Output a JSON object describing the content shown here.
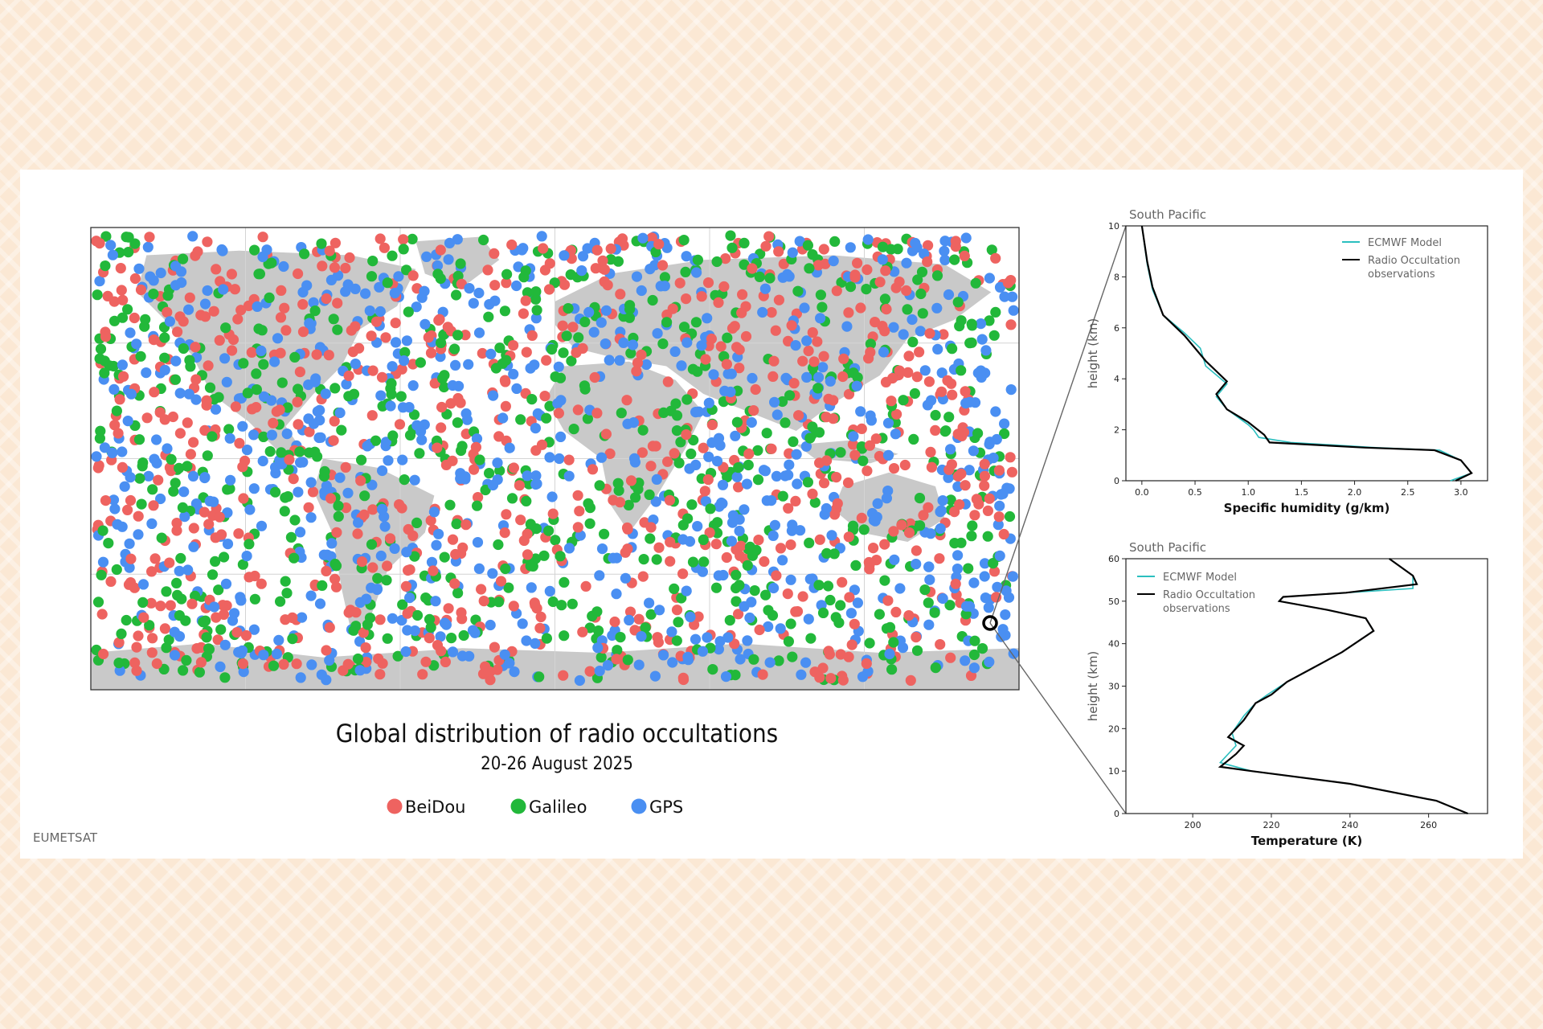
{
  "chart_data": [
    {
      "type": "scatter",
      "title": "Global distribution of radio occultations",
      "subtitle": "20-26 August 2025",
      "legend_position": "bottom-center",
      "series": [
        {
          "name": "BeiDou",
          "color": "#ee6360"
        },
        {
          "name": "Galileo",
          "color": "#22b83a"
        },
        {
          "name": "GPS",
          "color": "#4a8ff2"
        }
      ],
      "highlight_location": "South Pacific",
      "x_range": [
        -180,
        180
      ],
      "y_range": [
        -90,
        90
      ]
    },
    {
      "type": "line",
      "title": "South Pacific",
      "xlabel": "Specific humidity (g/km)",
      "ylabel": "height (km)",
      "xlim": [
        -0.15,
        3.25
      ],
      "ylim": [
        0,
        10
      ],
      "xticks": [
        "0.0",
        "0.5",
        "1.0",
        "1.5",
        "2.0",
        "2.5",
        "3.0"
      ],
      "yticks": [
        "0",
        "2",
        "4",
        "6",
        "8",
        "10"
      ],
      "legend_position": "top-right",
      "series": [
        {
          "name": "ECMWF Model",
          "color": "#2bbfbf",
          "x": [
            2.9,
            3.1,
            3.0,
            2.8,
            2.2,
            1.4,
            1.1,
            1.05,
            1.0,
            0.8,
            0.7,
            0.8,
            0.6,
            0.55,
            0.4,
            0.2,
            0.1,
            0.05,
            0.0
          ],
          "y": [
            0.0,
            0.3,
            0.8,
            1.2,
            1.3,
            1.5,
            1.7,
            2.0,
            2.2,
            2.8,
            3.3,
            3.8,
            4.5,
            5.2,
            5.8,
            6.5,
            7.5,
            8.5,
            10.0
          ]
        },
        {
          "name": "Radio Occultation observations",
          "color": "#000000",
          "x": [
            2.95,
            3.1,
            3.0,
            2.75,
            2.1,
            1.2,
            1.15,
            1.0,
            0.8,
            0.7,
            0.8,
            0.6,
            0.4,
            0.2,
            0.1,
            0.05,
            0.0
          ],
          "y": [
            0.0,
            0.3,
            0.8,
            1.2,
            1.3,
            1.5,
            1.8,
            2.3,
            2.8,
            3.4,
            3.9,
            4.7,
            5.7,
            6.5,
            7.6,
            8.6,
            10.0
          ]
        }
      ]
    },
    {
      "type": "line",
      "title": "South Pacific",
      "xlabel": "Temperature (K)",
      "ylabel": "height (km)",
      "xlim": [
        183,
        275
      ],
      "ylim": [
        0,
        60
      ],
      "xticks": [
        "200",
        "220",
        "240",
        "260"
      ],
      "yticks": [
        "0",
        "10",
        "20",
        "30",
        "40",
        "50",
        "60"
      ],
      "legend_position": "top-left",
      "series": [
        {
          "name": "ECMWF Model",
          "color": "#2bbfbf",
          "x": [
            270,
            266,
            262,
            240,
            215,
            207,
            209,
            211,
            210,
            213,
            216,
            219,
            224,
            230,
            238,
            246,
            244,
            234,
            222,
            223,
            239,
            256,
            256,
            250
          ],
          "y": [
            0,
            1.5,
            3,
            7,
            10,
            12,
            14,
            16,
            19,
            23,
            26,
            28,
            31,
            34,
            38,
            43,
            46,
            48,
            50,
            51,
            52,
            53,
            56,
            60
          ]
        },
        {
          "name": "Radio Occultation observations",
          "color": "#000000",
          "x": [
            270,
            266,
            262,
            240,
            215,
            207,
            211,
            213,
            209,
            213,
            216,
            220,
            224,
            230,
            238,
            246,
            244,
            234,
            222,
            223,
            239,
            257,
            256,
            250
          ],
          "y": [
            0,
            1.5,
            3,
            7,
            10,
            11,
            14,
            16,
            18,
            22,
            26,
            28,
            31,
            34,
            38,
            43,
            46,
            48,
            50,
            51,
            52,
            54,
            56,
            60
          ]
        }
      ]
    }
  ],
  "credit": "EUMETSAT",
  "colors": {
    "grid": "#d4d4d4",
    "land": "#c9c9c9"
  }
}
